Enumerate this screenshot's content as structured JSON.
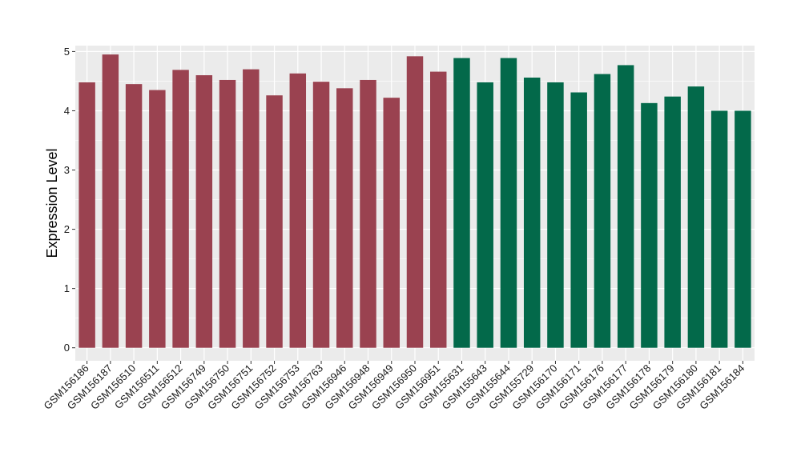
{
  "chart_data": {
    "type": "bar",
    "title": "",
    "xlabel": "",
    "ylabel": "Expression Level",
    "ylim": [
      -0.22,
      5.1
    ],
    "y_ticks": [
      0,
      1,
      2,
      3,
      4,
      5
    ],
    "grid": true,
    "legend": "none",
    "categories": [
      "GSM156186",
      "GSM156187",
      "GSM156510",
      "GSM156511",
      "GSM156512",
      "GSM156749",
      "GSM156750",
      "GSM156751",
      "GSM156752",
      "GSM156753",
      "GSM156763",
      "GSM156946",
      "GSM156948",
      "GSM156949",
      "GSM156950",
      "GSM156951",
      "GSM155631",
      "GSM155643",
      "GSM155644",
      "GSM155729",
      "GSM156170",
      "GSM156171",
      "GSM156176",
      "GSM156177",
      "GSM156178",
      "GSM156179",
      "GSM156180",
      "GSM156181",
      "GSM156184"
    ],
    "values": [
      4.48,
      4.95,
      4.45,
      4.35,
      4.69,
      4.6,
      4.52,
      4.7,
      4.26,
      4.63,
      4.49,
      4.38,
      4.52,
      4.22,
      4.92,
      4.66,
      4.89,
      4.48,
      4.89,
      4.56,
      4.48,
      4.31,
      4.62,
      4.77,
      4.13,
      4.24,
      4.41,
      4.0,
      4.0
    ],
    "colors": [
      "#9a4250",
      "#9a4250",
      "#9a4250",
      "#9a4250",
      "#9a4250",
      "#9a4250",
      "#9a4250",
      "#9a4250",
      "#9a4250",
      "#9a4250",
      "#9a4250",
      "#9a4250",
      "#9a4250",
      "#9a4250",
      "#9a4250",
      "#9a4250",
      "#03694a",
      "#03694a",
      "#03694a",
      "#03694a",
      "#03694a",
      "#03694a",
      "#03694a",
      "#03694a",
      "#03694a",
      "#03694a",
      "#03694a",
      "#03694a",
      "#03694a"
    ]
  }
}
